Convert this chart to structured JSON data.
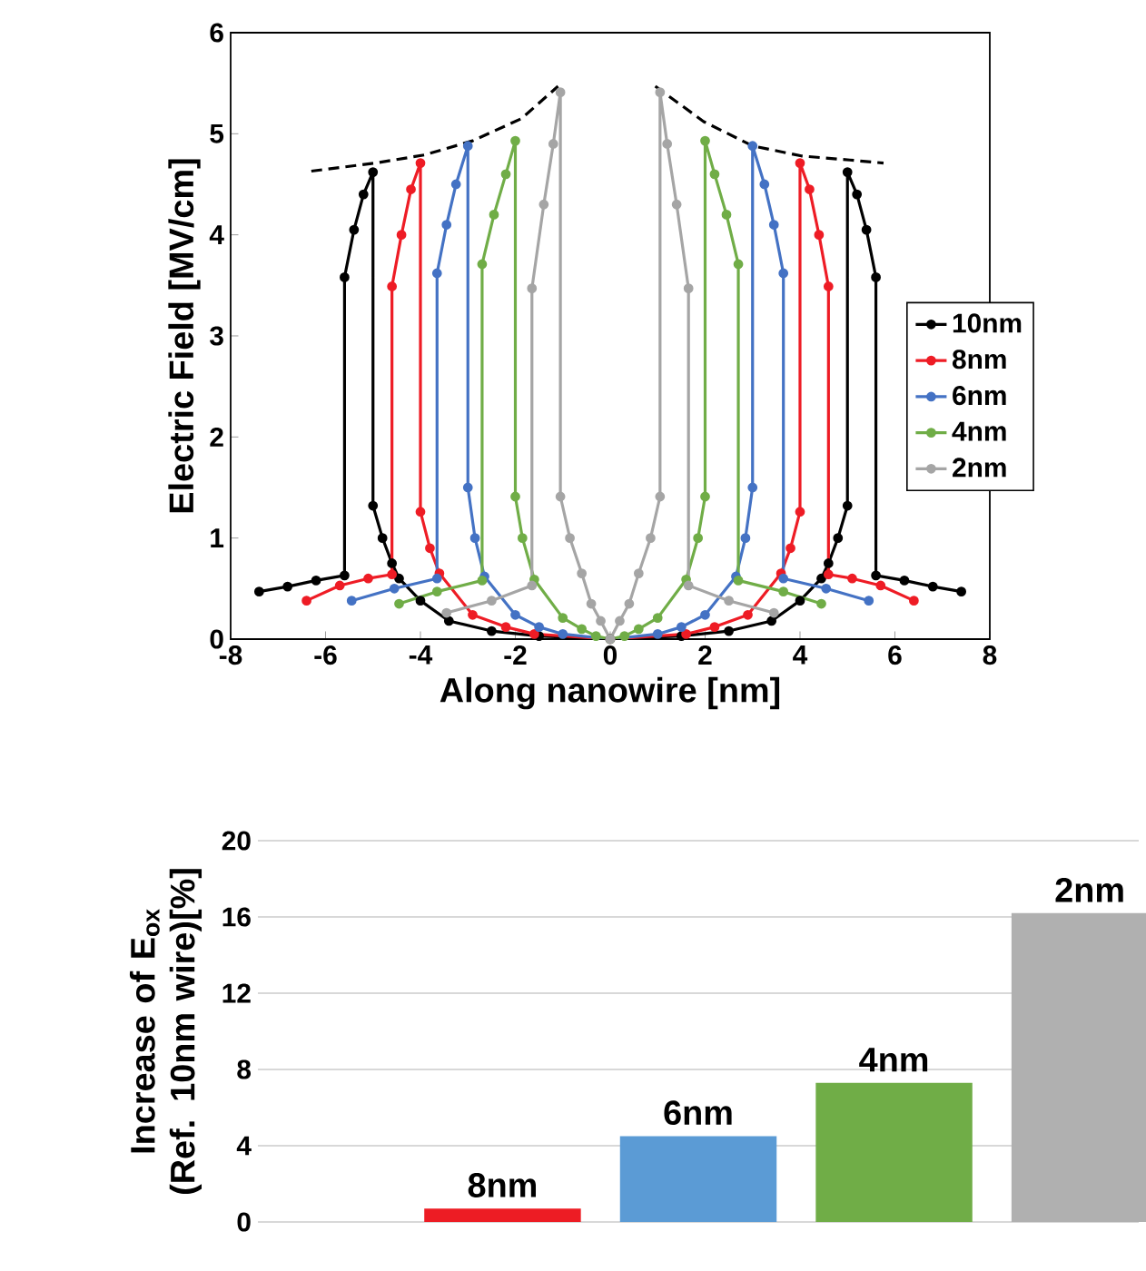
{
  "chart_data": [
    {
      "type": "line",
      "xlabel": "Along nanowire [nm]",
      "ylabel": "Electric Field [MV/cm]",
      "xlim": [
        -8,
        8
      ],
      "xticks": [
        -8,
        -6,
        -4,
        -2,
        0,
        2,
        4,
        6,
        8
      ],
      "ylim": [
        0,
        6
      ],
      "yticks": [
        0,
        1,
        2,
        3,
        4,
        5,
        6
      ],
      "legend": "right",
      "marker": "circle",
      "line_style": "solid",
      "series": [
        {
          "name": "10nm",
          "color": "#000000",
          "x": [
            -7.4,
            -6.8,
            -6.2,
            -5.6,
            -5.6,
            -5.4,
            -5.2,
            -5.0,
            -5.0,
            -4.8,
            -4.6,
            -4.45,
            -4.0,
            -3.4,
            -2.5,
            -1.5,
            0,
            1.5,
            2.5,
            3.4,
            4.0,
            4.45,
            4.6,
            4.8,
            5.0,
            5.0,
            5.2,
            5.4,
            5.6,
            5.6,
            6.2,
            6.8,
            7.4
          ],
          "values": [
            0.47,
            0.52,
            0.58,
            0.63,
            3.58,
            4.05,
            4.4,
            4.62,
            1.32,
            1.0,
            0.75,
            0.6,
            0.38,
            0.18,
            0.08,
            0.03,
            0,
            0.03,
            0.08,
            0.18,
            0.38,
            0.6,
            0.75,
            1.0,
            1.32,
            4.62,
            4.4,
            4.05,
            3.58,
            0.63,
            0.58,
            0.52,
            0.47
          ]
        },
        {
          "name": "8nm",
          "color": "#ee1c25",
          "x": [
            -6.4,
            -5.7,
            -5.1,
            -4.6,
            -4.6,
            -4.4,
            -4.2,
            -4.0,
            -4.0,
            -3.8,
            -3.6,
            -2.9,
            -2.2,
            -1.6,
            0,
            1.6,
            2.2,
            2.9,
            3.6,
            3.8,
            4.0,
            4.0,
            4.2,
            4.4,
            4.6,
            4.6,
            5.1,
            5.7,
            6.4
          ],
          "values": [
            0.38,
            0.53,
            0.6,
            0.64,
            3.49,
            4.0,
            4.45,
            4.71,
            1.26,
            0.9,
            0.65,
            0.24,
            0.12,
            0.05,
            0,
            0.05,
            0.12,
            0.24,
            0.65,
            0.9,
            1.26,
            4.71,
            4.45,
            4.0,
            3.49,
            0.64,
            0.6,
            0.53,
            0.38
          ]
        },
        {
          "name": "6nm",
          "color": "#4472c4",
          "x": [
            -5.45,
            -4.55,
            -3.65,
            -3.65,
            -3.45,
            -3.25,
            -3.0,
            -3.0,
            -2.85,
            -2.65,
            -2.0,
            -1.5,
            -1.0,
            0,
            1.0,
            1.5,
            2.0,
            2.65,
            2.85,
            3.0,
            3.0,
            3.25,
            3.45,
            3.65,
            3.65,
            4.55,
            5.45
          ],
          "values": [
            0.38,
            0.5,
            0.6,
            3.62,
            4.1,
            4.5,
            4.88,
            1.5,
            1.0,
            0.62,
            0.24,
            0.12,
            0.05,
            0,
            0.05,
            0.12,
            0.24,
            0.62,
            1.0,
            1.5,
            4.88,
            4.5,
            4.1,
            3.62,
            0.6,
            0.5,
            0.38
          ]
        },
        {
          "name": "4nm",
          "color": "#70ad47",
          "x": [
            -4.45,
            -3.65,
            -2.7,
            -2.7,
            -2.45,
            -2.2,
            -2.0,
            -2.0,
            -1.85,
            -1.6,
            -1.0,
            -0.6,
            -0.3,
            0,
            0.3,
            0.6,
            1.0,
            1.6,
            1.85,
            2.0,
            2.0,
            2.2,
            2.45,
            2.7,
            2.7,
            3.65,
            4.45
          ],
          "values": [
            0.35,
            0.47,
            0.58,
            3.71,
            4.2,
            4.6,
            4.93,
            1.41,
            1.0,
            0.59,
            0.21,
            0.1,
            0.03,
            0,
            0.03,
            0.1,
            0.21,
            0.59,
            1.0,
            1.41,
            4.93,
            4.6,
            4.2,
            3.71,
            0.58,
            0.47,
            0.35
          ]
        },
        {
          "name": "2nm",
          "color": "#a5a5a5",
          "x": [
            -3.45,
            -2.5,
            -1.65,
            -1.65,
            -1.4,
            -1.2,
            -1.05,
            -1.05,
            -0.85,
            -0.6,
            -0.4,
            -0.2,
            0,
            0.2,
            0.4,
            0.6,
            0.85,
            1.05,
            1.05,
            1.2,
            1.4,
            1.65,
            1.65,
            2.5,
            3.45
          ],
          "values": [
            0.26,
            0.38,
            0.53,
            3.47,
            4.3,
            4.9,
            5.41,
            1.41,
            1.0,
            0.65,
            0.35,
            0.18,
            0,
            0.18,
            0.35,
            0.65,
            1.0,
            1.41,
            5.41,
            4.9,
            4.3,
            3.47,
            0.53,
            0.38,
            0.26
          ]
        },
        {
          "color": "#000000",
          "marker": "none",
          "line_style": "dashed",
          "x": [
            -6.3,
            -4.95,
            -3.92,
            -2.9,
            -1.87,
            -1.1
          ],
          "values": [
            4.63,
            4.71,
            4.79,
            4.93,
            5.15,
            5.47
          ]
        },
        {
          "color": "#000000",
          "marker": "none",
          "line_style": "dashed",
          "x": [
            0.95,
            1.97,
            3.0,
            4.03,
            5.05,
            5.76
          ],
          "values": [
            5.47,
            5.12,
            4.88,
            4.78,
            4.74,
            4.71
          ]
        }
      ]
    },
    {
      "type": "bar",
      "ylabel": "Increase of E$_{ox}$ (Ref. 10nm wire)[%]",
      "categories": [
        "8nm",
        "6nm",
        "4nm",
        "2nm"
      ],
      "values": [
        0.7,
        4.5,
        7.3,
        16.2
      ],
      "colors": [
        "#ed1c24",
        "#5b9bd5",
        "#70ad47",
        "#b0b0b0"
      ],
      "ylim": [
        0,
        20
      ],
      "yticks": [
        0,
        4,
        8,
        12,
        16,
        20
      ],
      "grid": "y",
      "tick_labels": "y"
    }
  ]
}
